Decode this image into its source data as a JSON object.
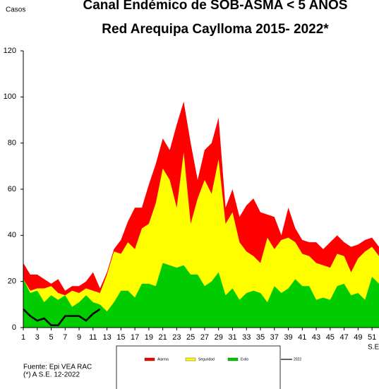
{
  "chart_data": {
    "type": "area",
    "title": "Canal Endémico de SOB-ASMA < 5 AÑOS",
    "subtitle": "Red Arequipa Caylloma 2015- 2022*",
    "y_label": "Casos",
    "x_label": "S.E.",
    "source": "Fuente: Epi VEA RAC",
    "note": "(*) A S.E. 12-2022",
    "x": [
      1,
      2,
      3,
      4,
      5,
      6,
      7,
      8,
      9,
      10,
      11,
      12,
      13,
      14,
      15,
      16,
      17,
      18,
      19,
      20,
      21,
      22,
      23,
      24,
      25,
      26,
      27,
      28,
      29,
      30,
      31,
      32,
      33,
      34,
      35,
      36,
      37,
      38,
      39,
      40,
      41,
      42,
      43,
      44,
      45,
      46,
      47,
      48,
      49,
      50,
      51,
      52
    ],
    "xlim": [
      1,
      52
    ],
    "xticks": [
      1,
      3,
      5,
      7,
      9,
      11,
      13,
      15,
      17,
      19,
      21,
      23,
      25,
      27,
      29,
      31,
      33,
      35,
      37,
      39,
      41,
      43,
      45,
      47,
      49,
      51
    ],
    "ylim": [
      0,
      120
    ],
    "yticks": [
      0,
      20,
      40,
      60,
      80,
      100,
      120
    ],
    "series": [
      {
        "name": "Alarma",
        "color": "#ff0000",
        "values": [
          28,
          23,
          23,
          21,
          19,
          21,
          16,
          18,
          18,
          20,
          24,
          17,
          24,
          34,
          38,
          46,
          52,
          52,
          62,
          71,
          82,
          77,
          88,
          98,
          80,
          64,
          77,
          80,
          91,
          52,
          60,
          48,
          53,
          56,
          50,
          49,
          48,
          40,
          52,
          43,
          38,
          37,
          37,
          34,
          37,
          40,
          37,
          35,
          36,
          38,
          39,
          35
        ]
      },
      {
        "name": "Seguridad",
        "color": "#ffff00",
        "values": [
          21,
          16,
          17,
          17,
          18,
          15,
          14,
          16,
          15,
          17,
          16,
          15,
          23,
          33,
          32,
          37,
          34,
          43,
          45,
          54,
          69,
          64,
          52,
          76,
          45,
          56,
          64,
          58,
          73,
          45,
          50,
          37,
          33,
          31,
          28,
          39,
          34,
          38,
          39,
          37,
          32,
          31,
          28,
          27,
          26,
          32,
          31,
          24,
          30,
          33,
          35,
          31
        ]
      },
      {
        "name": "Exito",
        "color": "#00cc00",
        "values": [
          21,
          15,
          16,
          11,
          14,
          12,
          14,
          9,
          11,
          14,
          11,
          10,
          7,
          11,
          16,
          16,
          13,
          19,
          19,
          18,
          28,
          27,
          26,
          27,
          23,
          23,
          18,
          20,
          24,
          14,
          17,
          12,
          15,
          16,
          15,
          11,
          18,
          15,
          17,
          21,
          18,
          18,
          12,
          13,
          12,
          18,
          19,
          14,
          15,
          12,
          22,
          19
        ]
      },
      {
        "name": "2022",
        "color": "#000000",
        "line": true,
        "values": [
          8,
          5,
          3,
          4,
          1,
          1,
          5,
          5,
          5,
          3,
          6,
          8,
          null,
          null,
          null,
          null,
          null,
          null,
          null,
          null,
          null,
          null,
          null,
          null,
          null,
          null,
          null,
          null,
          null,
          null,
          null,
          null,
          null,
          null,
          null,
          null,
          null,
          null,
          null,
          null,
          null,
          null,
          null,
          null,
          null,
          null,
          null,
          null,
          null,
          null,
          null,
          null
        ]
      }
    ]
  }
}
